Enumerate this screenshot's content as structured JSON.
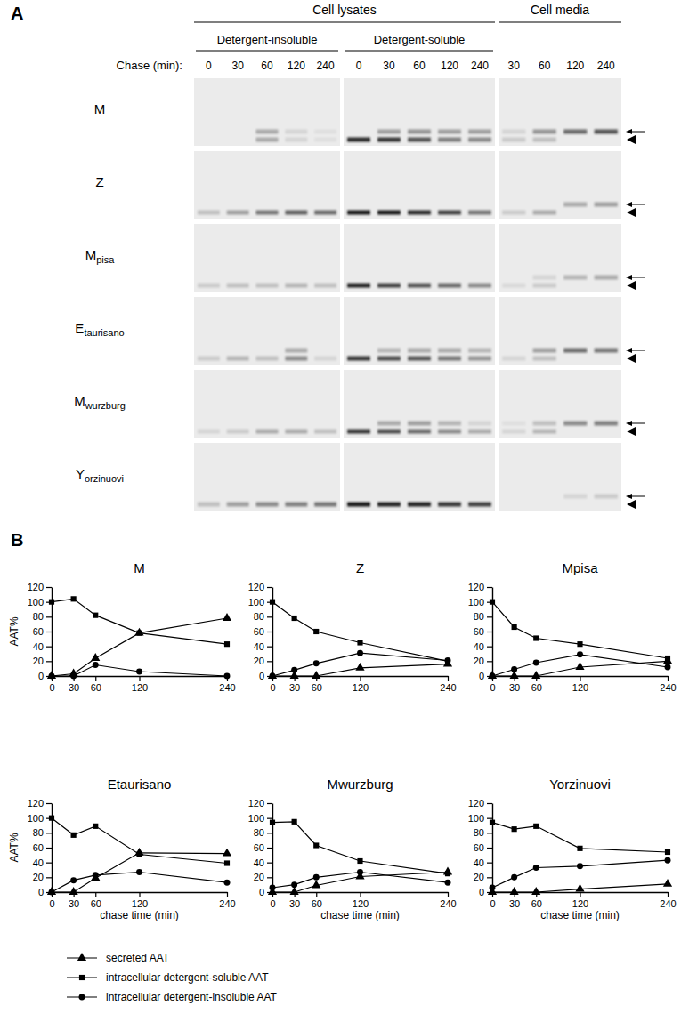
{
  "gel": {
    "panel_label": "A",
    "headers": [
      "Cell lysates",
      "Cell media"
    ],
    "chase_label": "Chase (min):",
    "sections": [
      {
        "title": "Detergent-insoluble",
        "lanes": [
          0,
          30,
          60,
          120,
          240
        ]
      },
      {
        "title": "Detergent-soluble",
        "lanes": [
          0,
          30,
          60,
          120,
          240
        ]
      },
      {
        "lanes": [
          30,
          60,
          120,
          240
        ]
      }
    ],
    "rows": [
      {
        "label": "M",
        "upper": [
          0,
          0,
          0.3,
          0.1,
          0.05,
          0,
          0.35,
          0.4,
          0.35,
          0.35,
          0.1,
          0.4,
          0.6,
          0.7
        ],
        "lower": [
          0,
          0,
          0.3,
          0.1,
          0.05,
          0.9,
          0.85,
          0.7,
          0.5,
          0.45,
          0.15,
          0.2,
          0,
          0
        ]
      },
      {
        "label": "Z",
        "upper": [
          0,
          0,
          0,
          0,
          0,
          0,
          0,
          0,
          0,
          0,
          0,
          0,
          0.3,
          0.35
        ],
        "lower": [
          0.2,
          0.35,
          0.55,
          0.65,
          0.6,
          1,
          1,
          0.9,
          0.8,
          0.55,
          0.15,
          0.3,
          0,
          0
        ]
      },
      {
        "label": "M",
        "sub": "pisa",
        "upper": [
          0,
          0,
          0,
          0,
          0,
          0,
          0,
          0,
          0,
          0,
          0,
          0.1,
          0.25,
          0.3
        ],
        "lower": [
          0.15,
          0.2,
          0.2,
          0.25,
          0.2,
          0.95,
          0.8,
          0.7,
          0.6,
          0.45,
          0.08,
          0.15,
          0,
          0
        ]
      },
      {
        "label": "E",
        "sub": "taurisano",
        "upper": [
          0,
          0,
          0,
          0.3,
          0,
          0,
          0.25,
          0.3,
          0.3,
          0.25,
          0,
          0.35,
          0.6,
          0.55
        ],
        "lower": [
          0.15,
          0.25,
          0.2,
          0.45,
          0.1,
          0.85,
          0.75,
          0.7,
          0.55,
          0.4,
          0.1,
          0.2,
          0,
          0
        ]
      },
      {
        "label": "M",
        "sub": "wurzburg",
        "upper": [
          0,
          0,
          0,
          0,
          0,
          0,
          0.3,
          0.35,
          0.25,
          0.1,
          0.05,
          0.2,
          0.45,
          0.5
        ],
        "lower": [
          0.1,
          0.15,
          0.3,
          0.3,
          0.2,
          0.85,
          0.75,
          0.6,
          0.45,
          0.3,
          0.1,
          0.25,
          0,
          0
        ]
      },
      {
        "label": "Y",
        "sub": "orzinuovi",
        "upper": [
          0,
          0,
          0,
          0,
          0,
          0,
          0,
          0,
          0,
          0,
          0,
          0,
          0.1,
          0.15
        ],
        "lower": [
          0.2,
          0.35,
          0.45,
          0.5,
          0.55,
          1,
          0.95,
          0.95,
          0.85,
          0.8,
          0,
          0,
          0,
          0
        ]
      }
    ]
  },
  "panel_b_label": "B",
  "chart_data": [
    {
      "type": "line",
      "title": "M",
      "y_label": "AAT%",
      "legend": "bottom",
      "x": [
        0,
        30,
        60,
        120,
        240
      ],
      "xlim": [
        0,
        240
      ],
      "xticks": [
        0,
        30,
        60,
        120,
        240
      ],
      "ylim": [
        0,
        120
      ],
      "yticks": [
        0,
        20,
        40,
        60,
        80,
        100,
        120
      ],
      "series": [
        {
          "name": "secreted AAT",
          "color": "#000000",
          "marker": "triangle",
          "values": [
            0,
            3,
            24,
            58,
            78
          ]
        },
        {
          "name": "intracellular detergent-soluble AAT",
          "color": "#000000",
          "marker": "square",
          "values": [
            100,
            104,
            82,
            58,
            43
          ]
        },
        {
          "name": "intracellular detergent-insoluble AAT",
          "color": "#000000",
          "marker": "circle",
          "values": [
            0,
            0,
            15,
            6,
            0
          ]
        }
      ]
    },
    {
      "type": "line",
      "title": "Z",
      "x": [
        0,
        30,
        60,
        120,
        240
      ],
      "xlim": [
        0,
        240
      ],
      "xticks": [
        0,
        30,
        60,
        120,
        240
      ],
      "ylim": [
        0,
        120
      ],
      "yticks": [
        0,
        20,
        40,
        60,
        80,
        100,
        120
      ],
      "series": [
        {
          "name": "secreted AAT",
          "color": "#000000",
          "marker": "triangle",
          "values": [
            0,
            0,
            0,
            11,
            16
          ]
        },
        {
          "name": "intracellular detergent-soluble AAT",
          "color": "#000000",
          "marker": "square",
          "values": [
            100,
            78,
            60,
            45,
            20
          ]
        },
        {
          "name": "intracellular detergent-insoluble AAT",
          "color": "#000000",
          "marker": "circle",
          "values": [
            0,
            8,
            17,
            31,
            21
          ]
        }
      ]
    },
    {
      "type": "line",
      "title": "Mpisa",
      "x": [
        0,
        30,
        60,
        120,
        240
      ],
      "xlim": [
        0,
        240
      ],
      "xticks": [
        0,
        30,
        60,
        120,
        240
      ],
      "ylim": [
        0,
        120
      ],
      "yticks": [
        0,
        20,
        40,
        60,
        80,
        100,
        120
      ],
      "series": [
        {
          "name": "secreted AAT",
          "color": "#000000",
          "marker": "triangle",
          "values": [
            0,
            0,
            0,
            12,
            20
          ]
        },
        {
          "name": "intracellular detergent-soluble AAT",
          "color": "#000000",
          "marker": "square",
          "values": [
            100,
            66,
            51,
            43,
            24
          ]
        },
        {
          "name": "intracellular detergent-insoluble AAT",
          "color": "#000000",
          "marker": "circle",
          "values": [
            0,
            9,
            18,
            29,
            12
          ]
        }
      ]
    },
    {
      "type": "line",
      "title": "Etaurisano",
      "y_label": "AAT%",
      "x_label": "chase time (min)",
      "x": [
        0,
        30,
        60,
        120,
        240
      ],
      "xlim": [
        0,
        240
      ],
      "xticks": [
        0,
        30,
        60,
        120,
        240
      ],
      "ylim": [
        0,
        120
      ],
      "yticks": [
        0,
        20,
        40,
        60,
        80,
        100,
        120
      ],
      "series": [
        {
          "name": "secreted AAT",
          "color": "#000000",
          "marker": "triangle",
          "values": [
            0,
            0,
            19,
            53,
            52
          ]
        },
        {
          "name": "intracellular detergent-soluble AAT",
          "color": "#000000",
          "marker": "square",
          "values": [
            100,
            77,
            89,
            51,
            39
          ]
        },
        {
          "name": "intracellular detergent-insoluble AAT",
          "color": "#000000",
          "marker": "circle",
          "values": [
            0,
            16,
            23,
            27,
            13
          ]
        }
      ]
    },
    {
      "type": "line",
      "title": "Mwurzburg",
      "x_label": "chase time (min)",
      "x": [
        0,
        30,
        60,
        120,
        240
      ],
      "xlim": [
        0,
        240
      ],
      "xticks": [
        0,
        30,
        60,
        120,
        240
      ],
      "ylim": [
        0,
        120
      ],
      "yticks": [
        0,
        20,
        40,
        60,
        80,
        100,
        120
      ],
      "series": [
        {
          "name": "secreted AAT",
          "color": "#000000",
          "marker": "triangle",
          "values": [
            0,
            0,
            9,
            21,
            27
          ]
        },
        {
          "name": "intracellular detergent-soluble AAT",
          "color": "#000000",
          "marker": "square",
          "values": [
            94,
            95,
            63,
            42,
            25
          ]
        },
        {
          "name": "intracellular detergent-insoluble AAT",
          "color": "#000000",
          "marker": "circle",
          "values": [
            6,
            10,
            20,
            27,
            13
          ]
        }
      ]
    },
    {
      "type": "line",
      "title": "Yorzinuovi",
      "x_label": "chase time (min)",
      "x": [
        0,
        30,
        60,
        120,
        240
      ],
      "xlim": [
        0,
        240
      ],
      "xticks": [
        0,
        30,
        60,
        120,
        240
      ],
      "ylim": [
        0,
        120
      ],
      "yticks": [
        0,
        20,
        40,
        60,
        80,
        100,
        120
      ],
      "series": [
        {
          "name": "secreted AAT",
          "color": "#000000",
          "marker": "triangle",
          "values": [
            0,
            0,
            0,
            4,
            11
          ]
        },
        {
          "name": "intracellular detergent-soluble AAT",
          "color": "#000000",
          "marker": "square",
          "values": [
            94,
            85,
            89,
            59,
            54
          ]
        },
        {
          "name": "intracellular detergent-insoluble AAT",
          "color": "#000000",
          "marker": "circle",
          "values": [
            6,
            20,
            33,
            35,
            43
          ]
        }
      ]
    }
  ]
}
